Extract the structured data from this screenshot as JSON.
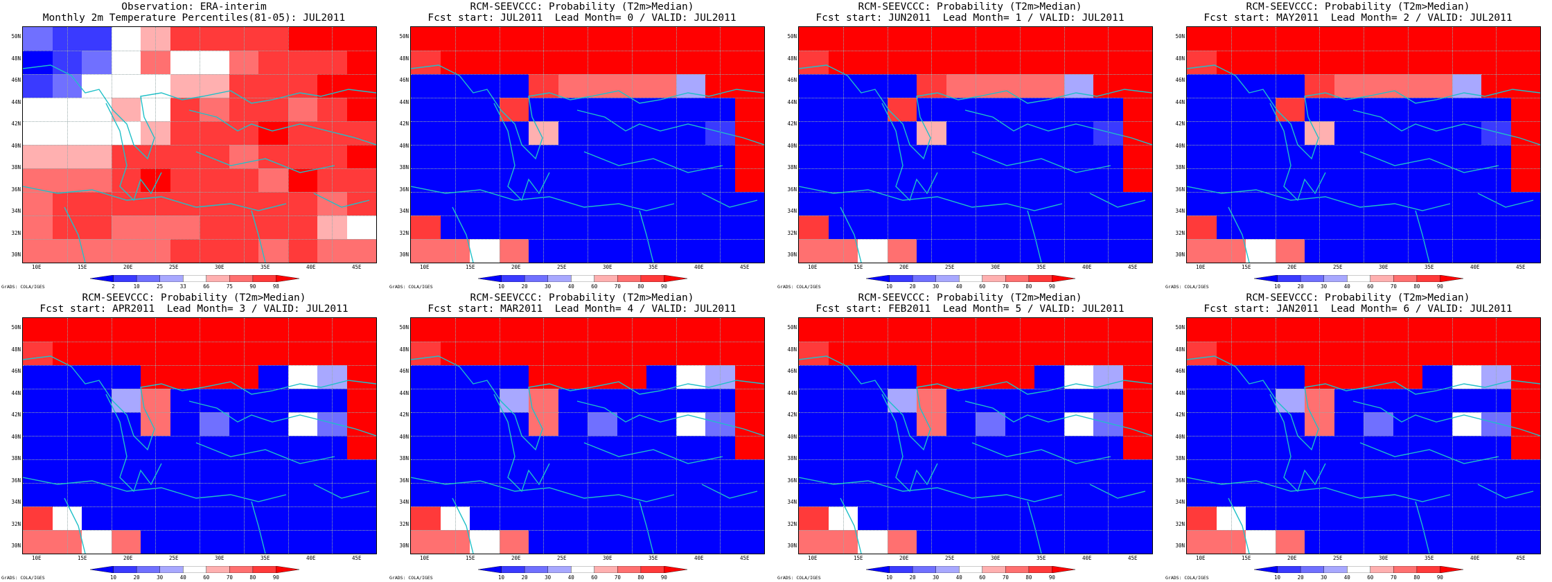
{
  "panels": [
    {
      "id": "obs",
      "lines": [
        "Observation: ERA-interim",
        "Monthly 2m Temperature Percentiles(81-05): JUL2011"
      ],
      "colorbar_labels": [
        "2",
        "10",
        "25",
        "33",
        "66",
        "75",
        "90",
        "98"
      ]
    },
    {
      "id": "jul",
      "lines": [
        "RCM-SEEVCCC: Probability (T2m>Median)",
        "Fcst start: JUL2011  Lead Month= 0 / VALID: JUL2011"
      ],
      "colorbar_labels": [
        "10",
        "20",
        "30",
        "40",
        "60",
        "70",
        "80",
        "90"
      ]
    },
    {
      "id": "jun",
      "lines": [
        "RCM-SEEVCCC: Probability (T2m>Median)",
        "Fcst start: JUN2011  Lead Month= 1 / VALID: JUL2011"
      ],
      "colorbar_labels": [
        "10",
        "20",
        "30",
        "40",
        "60",
        "70",
        "80",
        "90"
      ]
    },
    {
      "id": "may",
      "lines": [
        "RCM-SEEVCCC: Probability (T2m>Median)",
        "Fcst start: MAY2011  Lead Month= 2 / VALID: JUL2011"
      ],
      "colorbar_labels": [
        "10",
        "20",
        "30",
        "40",
        "60",
        "70",
        "80",
        "90"
      ]
    },
    {
      "id": "apr",
      "lines": [
        "RCM-SEEVCCC: Probability (T2m>Median)",
        "Fcst start: APR2011  Lead Month= 3 / VALID: JUL2011"
      ],
      "colorbar_labels": [
        "10",
        "20",
        "30",
        "40",
        "60",
        "70",
        "80",
        "90"
      ]
    },
    {
      "id": "mar",
      "lines": [
        "RCM-SEEVCCC: Probability (T2m>Median)",
        "Fcst start: MAR2011  Lead Month= 4 / VALID: JUL2011"
      ],
      "colorbar_labels": [
        "10",
        "20",
        "30",
        "40",
        "60",
        "70",
        "80",
        "90"
      ]
    },
    {
      "id": "feb",
      "lines": [
        "RCM-SEEVCCC: Probability (T2m>Median)",
        "Fcst start: FEB2011  Lead Month= 5 / VALID: JUL2011"
      ],
      "colorbar_labels": [
        "10",
        "20",
        "30",
        "40",
        "60",
        "70",
        "80",
        "90"
      ]
    },
    {
      "id": "jan",
      "lines": [
        "RCM-SEEVCCC: Probability (T2m>Median)",
        "Fcst start: JAN2011  Lead Month= 6 / VALID: JUL2011"
      ],
      "colorbar_labels": [
        "10",
        "20",
        "30",
        "40",
        "60",
        "70",
        "80",
        "90"
      ]
    }
  ],
  "lat_labels": [
    "50N",
    "48N",
    "46N",
    "44N",
    "42N",
    "40N",
    "38N",
    "36N",
    "34N",
    "32N",
    "30N"
  ],
  "lon_labels": [
    "10E",
    "15E",
    "20E",
    "25E",
    "30E",
    "35E",
    "40E",
    "45E"
  ],
  "credit": "GrADS: COLA/IGES",
  "colors": {
    "coastline": "#20c0c8",
    "high": "#ff0000",
    "low": "#0000ff"
  }
}
